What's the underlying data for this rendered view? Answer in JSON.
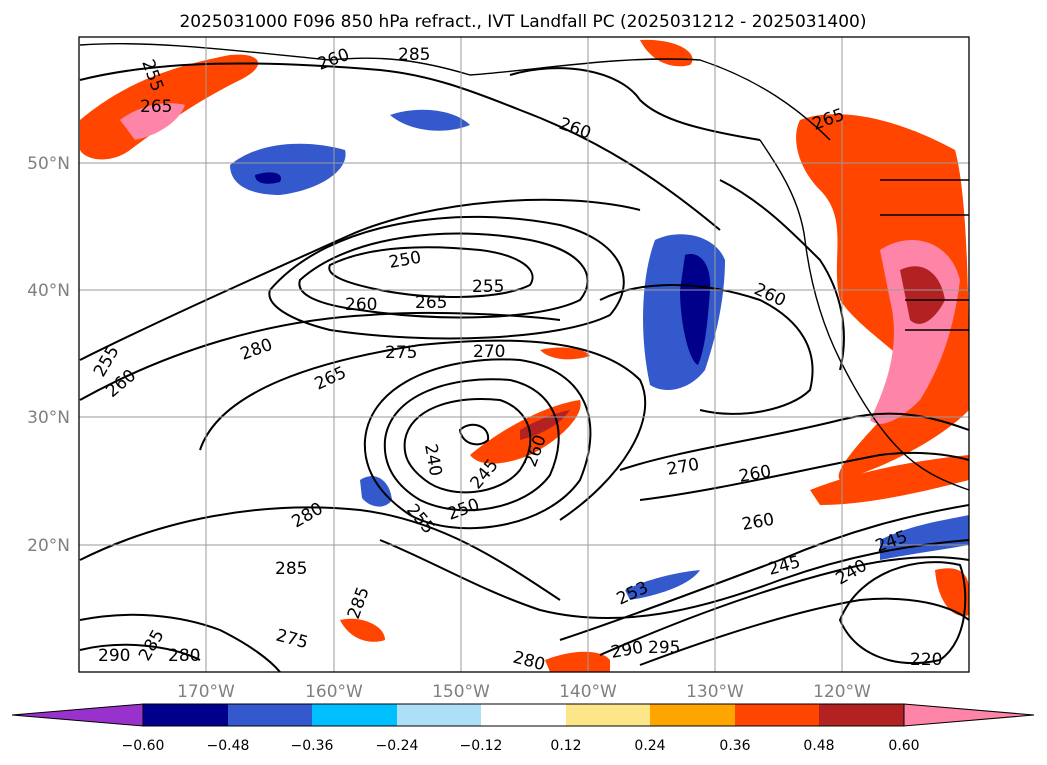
{
  "title": "2025031000 F096 850 hPa refract., IVT Landfall PC (2025031212 - 2025031400)",
  "map": {
    "lat_labels": [
      "50°N",
      "40°N",
      "30°N",
      "20°N"
    ],
    "lon_labels": [
      "170°W",
      "160°W",
      "150°W",
      "140°W",
      "130°W",
      "120°W"
    ],
    "gridlines": true
  },
  "contour_labels": [
    "255",
    "265",
    "260",
    "285",
    "260",
    "265",
    "250",
    "260",
    "265",
    "255",
    "260",
    "280",
    "275",
    "270",
    "255",
    "260",
    "265",
    "240",
    "245",
    "250",
    "260",
    "270",
    "260",
    "255",
    "260",
    "245",
    "240",
    "245",
    "253",
    "280",
    "285",
    "275",
    "290",
    "285",
    "280",
    "285",
    "290",
    "295",
    "280",
    "220"
  ],
  "colorbar": {
    "ticks": [
      "−0.60",
      "−0.48",
      "−0.36",
      "−0.24",
      "−0.12",
      "0.12",
      "0.24",
      "0.36",
      "0.48",
      "0.60"
    ],
    "colors": [
      "#9932CC",
      "#00008B",
      "#3359CC",
      "#00BFFF",
      "#ADE0F7",
      "#FFFFFF",
      "#FDE68A",
      "#FFA500",
      "#FF4500",
      "#B22222",
      "#FF85A8"
    ],
    "extend": "both"
  }
}
